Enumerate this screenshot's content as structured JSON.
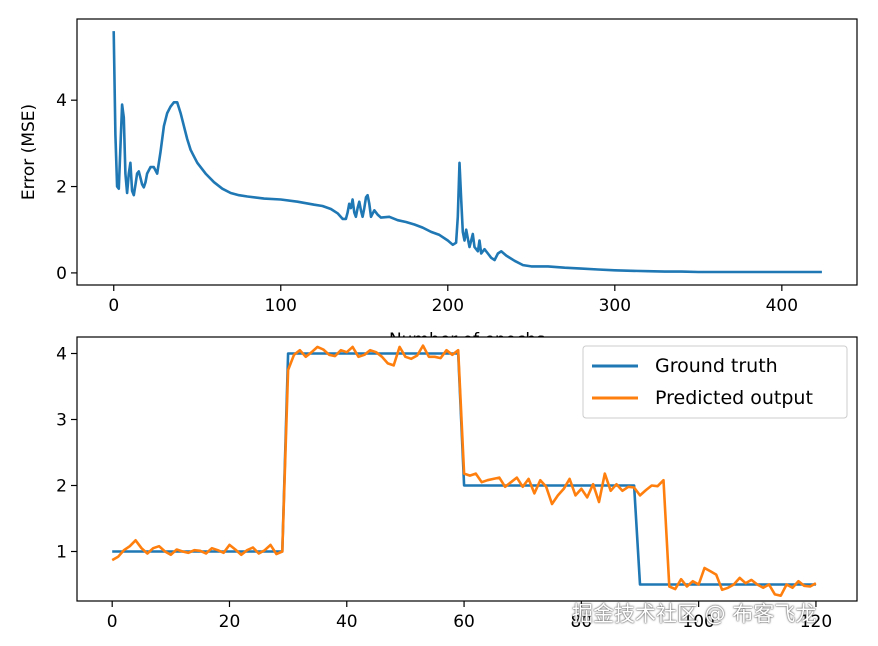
{
  "chart_data": [
    {
      "type": "line",
      "title": "",
      "xlabel": "Number of epochs",
      "ylabel": "Error (MSE)",
      "xlim": [
        -22,
        445
      ],
      "ylim": [
        -0.28,
        5.88
      ],
      "xticks": [
        0,
        100,
        200,
        300,
        400
      ],
      "yticks": [
        0,
        2,
        4
      ],
      "grid": false,
      "series": [
        {
          "name": "",
          "color": "#1f77b4",
          "x": [
            0,
            1,
            2,
            3,
            4,
            5,
            6,
            7,
            8,
            9,
            10,
            11,
            12,
            13,
            14,
            15,
            16,
            17,
            18,
            19,
            20,
            22,
            24,
            26,
            28,
            30,
            32,
            34,
            36,
            38,
            40,
            42,
            44,
            46,
            48,
            50,
            55,
            60,
            65,
            70,
            75,
            80,
            90,
            100,
            110,
            120,
            125,
            130,
            134,
            137,
            139,
            140,
            141,
            142,
            143,
            144,
            145,
            146,
            147,
            148,
            149,
            150,
            151,
            152,
            153,
            154,
            156,
            158,
            160,
            165,
            170,
            175,
            180,
            185,
            190,
            195,
            200,
            203,
            205,
            206,
            207,
            208,
            209,
            210,
            211,
            212,
            213,
            214,
            215,
            216,
            217,
            218,
            219,
            220,
            222,
            224,
            226,
            228,
            230,
            232,
            235,
            240,
            245,
            250,
            260,
            270,
            280,
            290,
            300,
            310,
            320,
            330,
            340,
            350,
            360,
            370,
            380,
            390,
            400,
            410,
            420,
            424
          ],
          "y": [
            5.6,
            3.2,
            2.0,
            1.95,
            2.9,
            3.9,
            3.6,
            2.3,
            1.85,
            2.3,
            2.55,
            1.9,
            1.8,
            2.05,
            2.3,
            2.35,
            2.2,
            2.05,
            1.98,
            2.1,
            2.3,
            2.45,
            2.45,
            2.3,
            2.8,
            3.4,
            3.7,
            3.85,
            3.95,
            3.95,
            3.7,
            3.4,
            3.1,
            2.85,
            2.7,
            2.55,
            2.3,
            2.1,
            1.95,
            1.85,
            1.8,
            1.77,
            1.72,
            1.7,
            1.65,
            1.58,
            1.55,
            1.48,
            1.38,
            1.25,
            1.25,
            1.4,
            1.6,
            1.5,
            1.7,
            1.4,
            1.3,
            1.5,
            1.65,
            1.45,
            1.3,
            1.5,
            1.75,
            1.8,
            1.6,
            1.3,
            1.45,
            1.35,
            1.28,
            1.3,
            1.22,
            1.18,
            1.12,
            1.05,
            0.95,
            0.88,
            0.75,
            0.65,
            0.7,
            1.3,
            2.55,
            1.7,
            0.95,
            0.75,
            1.0,
            0.8,
            0.6,
            0.75,
            0.9,
            0.6,
            0.55,
            0.5,
            0.75,
            0.45,
            0.55,
            0.45,
            0.35,
            0.3,
            0.45,
            0.5,
            0.4,
            0.28,
            0.18,
            0.15,
            0.15,
            0.12,
            0.1,
            0.08,
            0.06,
            0.05,
            0.04,
            0.03,
            0.03,
            0.02,
            0.02,
            0.02,
            0.02,
            0.02,
            0.02,
            0.02,
            0.02,
            0.02
          ]
        }
      ]
    },
    {
      "type": "line",
      "title": "",
      "xlabel": "",
      "ylabel": "",
      "xlim": [
        -6,
        127
      ],
      "ylim": [
        0.25,
        4.25
      ],
      "xticks": [
        0,
        20,
        40,
        60,
        80,
        100,
        120
      ],
      "yticks": [
        1,
        2,
        3,
        4
      ],
      "grid": false,
      "legend": "top-right",
      "series": [
        {
          "name": "Ground truth",
          "color": "#1f77b4",
          "x": [
            0,
            29,
            30,
            59,
            60,
            89,
            90,
            120
          ],
          "y": [
            1,
            1,
            4,
            4,
            2,
            2,
            0.5,
            0.5
          ]
        },
        {
          "name": "Predicted output",
          "color": "#ff7f0e",
          "x": [
            0,
            1,
            2,
            3,
            4,
            5,
            6,
            7,
            8,
            9,
            10,
            11,
            12,
            13,
            14,
            15,
            16,
            17,
            18,
            19,
            20,
            21,
            22,
            23,
            24,
            25,
            26,
            27,
            28,
            29,
            30,
            31,
            32,
            33,
            34,
            35,
            36,
            37,
            38,
            39,
            40,
            41,
            42,
            43,
            44,
            45,
            46,
            47,
            48,
            49,
            50,
            51,
            52,
            53,
            54,
            55,
            56,
            57,
            58,
            59,
            60,
            61,
            62,
            63,
            64,
            65,
            66,
            67,
            68,
            69,
            70,
            71,
            72,
            73,
            74,
            75,
            76,
            77,
            78,
            79,
            80,
            81,
            82,
            83,
            84,
            85,
            86,
            87,
            88,
            89,
            90,
            91,
            92,
            93,
            94,
            95,
            96,
            97,
            98,
            99,
            100,
            101,
            102,
            103,
            104,
            105,
            106,
            107,
            108,
            109,
            110,
            111,
            112,
            113,
            114,
            115,
            116,
            117,
            118,
            119,
            120
          ],
          "y": [
            0.87,
            0.92,
            1.02,
            1.08,
            1.17,
            1.05,
            0.97,
            1.05,
            1.08,
            1.0,
            0.95,
            1.03,
            1.0,
            0.98,
            1.02,
            1.01,
            0.97,
            1.05,
            1.02,
            0.98,
            1.1,
            1.03,
            0.95,
            1.02,
            1.06,
            0.97,
            1.02,
            1.1,
            0.96,
            1.0,
            3.75,
            3.98,
            4.05,
            3.95,
            4.02,
            4.1,
            4.06,
            3.98,
            3.96,
            4.05,
            4.02,
            4.1,
            3.95,
            3.98,
            4.05,
            4.02,
            3.95,
            3.85,
            3.82,
            4.1,
            3.95,
            3.92,
            3.97,
            4.12,
            3.95,
            3.95,
            3.93,
            4.05,
            3.98,
            4.05,
            2.18,
            2.15,
            2.18,
            2.05,
            2.08,
            2.1,
            2.12,
            1.98,
            2.05,
            2.12,
            1.98,
            2.1,
            1.88,
            2.08,
            1.98,
            1.72,
            1.85,
            1.95,
            2.1,
            1.85,
            1.95,
            1.82,
            2.02,
            1.75,
            2.18,
            1.92,
            2.02,
            1.92,
            1.98,
            1.97,
            1.85,
            1.93,
            2.0,
            1.99,
            2.08,
            0.47,
            0.43,
            0.58,
            0.47,
            0.55,
            0.5,
            0.75,
            0.7,
            0.65,
            0.42,
            0.45,
            0.5,
            0.6,
            0.52,
            0.57,
            0.5,
            0.45,
            0.5,
            0.35,
            0.33,
            0.5,
            0.45,
            0.55,
            0.48,
            0.47,
            0.52
          ]
        }
      ]
    }
  ],
  "watermark": "掘金技术社区 @ 布客飞龙"
}
